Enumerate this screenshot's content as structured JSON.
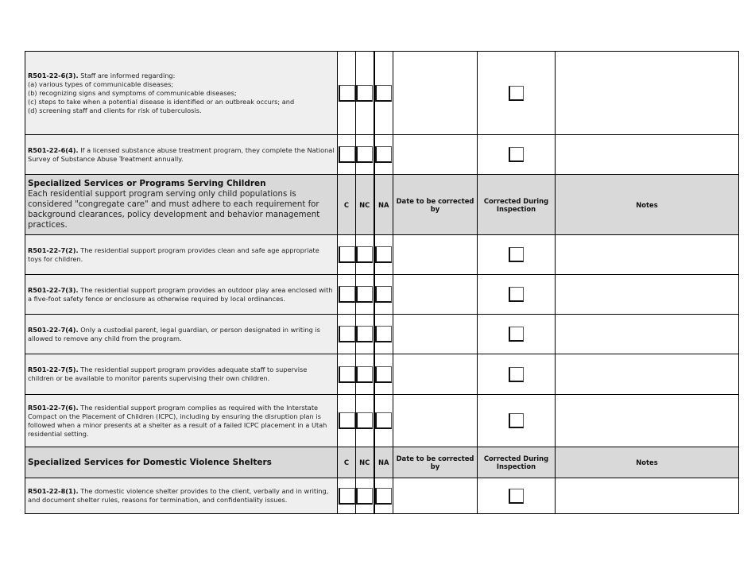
{
  "columns": {
    "c": "C",
    "nc": "NC",
    "na": "NA",
    "date": "Date to be corrected by",
    "corrected": "Corrected During Inspection",
    "notes": "Notes"
  },
  "rows": [
    {
      "type": "req",
      "code": "R501-22-6(3).",
      "text": "Staff are informed regarding:",
      "lines": [
        "(a) various types of communicable diseases;",
        "(b) recognizing signs and symptoms of communicable diseases;",
        "(c) steps to take when a potential disease is identified or an outbreak occurs; and",
        "(d) screening staff and clients for risk of tuberculosis."
      ]
    },
    {
      "type": "req",
      "code": "R501-22-6(4).",
      "text": "If a licensed substance abuse treatment program, they complete the National Survey of Substance Abuse Treatment annually."
    },
    {
      "type": "section",
      "title": "Specialized Services or Programs Serving Children",
      "desc": "Each residential support program serving only child populations is considered \"congregate care\" and must adhere to each requirement for background clearances, policy development and behavior management practices."
    },
    {
      "type": "req",
      "code": "R501-22-7(2).",
      "text": "The residential support program provides clean and safe age appropriate toys for children."
    },
    {
      "type": "req",
      "code": "R501-22-7(3).",
      "text": "The residential support program provides an outdoor play area enclosed with a five-foot safety fence or enclosure as otherwise required by local ordinances."
    },
    {
      "type": "req",
      "code": "R501-22-7(4).",
      "text": "Only a custodial parent, legal guardian, or person designated in writing is allowed to remove any child from the program."
    },
    {
      "type": "req",
      "code": "R501-22-7(5).",
      "text": "The residential support program provides adequate staff to supervise children or be available to monitor parents supervising their own children."
    },
    {
      "type": "req",
      "code": "R501-22-7(6).",
      "text": "The residential support program complies as required with the Interstate Compact on the Placement of Children (ICPC), including by ensuring the disruption plan is followed when a minor presents at a shelter as a result of a failed ICPC placement in a Utah residential setting."
    },
    {
      "type": "section",
      "title": "Specialized Services for Domestic Violence Shelters"
    },
    {
      "type": "req",
      "code": "R501-22-8(1).",
      "text": "The domestic violence shelter provides to the client, verbally and in writing, and document shelter rules, reasons for termination, and confidentiality issues."
    }
  ]
}
